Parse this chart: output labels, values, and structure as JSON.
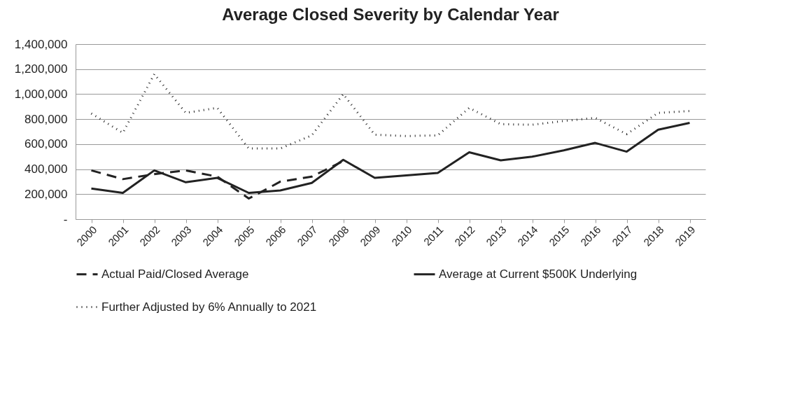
{
  "chart_data": {
    "type": "line",
    "title": "Average Closed Severity by Calendar Year",
    "categories": [
      "2000",
      "2001",
      "2002",
      "2003",
      "2004",
      "2005",
      "2006",
      "2007",
      "2008",
      "2009",
      "2010",
      "2011",
      "2012",
      "2013",
      "2014",
      "2015",
      "2016",
      "2017",
      "2018",
      "2019"
    ],
    "series": [
      {
        "name": "Actual Paid/Closed Average",
        "color": "#222222",
        "line_style": "dashed",
        "values": [
          390000,
          320000,
          360000,
          390000,
          340000,
          165000,
          300000,
          340000,
          465000,
          null,
          null,
          null,
          null,
          null,
          null,
          null,
          null,
          null,
          null,
          null
        ]
      },
      {
        "name": "Average at Current $500K Underlying",
        "color": "#222222",
        "line_style": "solid",
        "values": [
          245000,
          210000,
          390000,
          295000,
          330000,
          210000,
          230000,
          290000,
          475000,
          330000,
          350000,
          370000,
          535000,
          470000,
          500000,
          550000,
          610000,
          540000,
          715000,
          770000
        ]
      },
      {
        "name": "Further Adjusted by 6% Annually to 2021",
        "color": "#222222",
        "line_style": "dotted",
        "values": [
          845000,
          690000,
          1160000,
          850000,
          890000,
          565000,
          565000,
          670000,
          1000000,
          675000,
          665000,
          670000,
          890000,
          760000,
          755000,
          785000,
          810000,
          680000,
          850000,
          865000
        ]
      }
    ],
    "ylim": [
      0,
      1400000
    ],
    "yticks": [
      {
        "value": 0,
        "label": "-"
      },
      {
        "value": 200000,
        "label": "200,000"
      },
      {
        "value": 400000,
        "label": "400,000"
      },
      {
        "value": 600000,
        "label": "600,000"
      },
      {
        "value": 800000,
        "label": "800,000"
      },
      {
        "value": 1000000,
        "label": "1,000,000"
      },
      {
        "value": 1200000,
        "label": "1,200,000"
      },
      {
        "value": 1400000,
        "label": "1,400,000"
      }
    ],
    "grid": "y",
    "legend": "bottom",
    "marker": "none"
  }
}
